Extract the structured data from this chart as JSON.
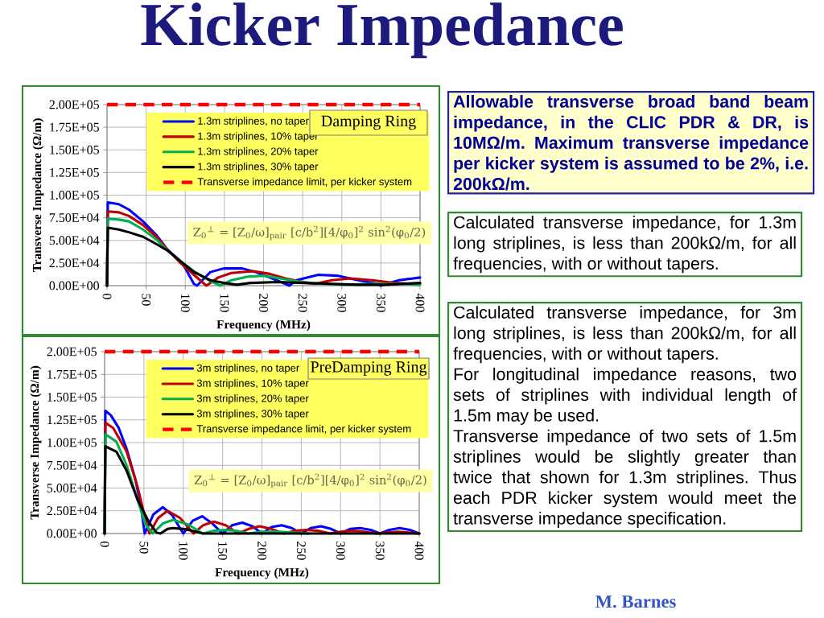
{
  "chart_data": [
    {
      "type": "other",
      "title": "Kicker Impedance",
      "annotations": [
        "Allowable transverse broad band beam impedance, in the CLIC PDR & DR, is 10MΩ/m. Maximum transverse impedance per kicker system is assumed to be 2%, i.e. 200kΩ/m.",
        "Calculated transverse impedance, for 1.3m long striplines, is less than 200kΩ/m, for all frequencies, with or without tapers.",
        "Calculated transverse impedance, for 3m long striplines, is less than 200kΩ/m, for all frequencies, with or without tapers.",
        "For longitudinal impedance reasons, two sets of striplines with individual length of 1.5m may be used.",
        "Transverse impedance of two sets of 1.5m striplines would be slightly greater than twice that shown for 1.3m striplines. Thus each PDR kicker system would meet the transverse impedance specification.",
        "M. Barnes"
      ]
    },
    {
      "type": "line",
      "xlabel": "Frequency (MHz)",
      "ylabel": "Transverse Impedance (Ω/m)",
      "annotations": [
        "Damping Ring",
        "Z$_{0}$$^{⊥}$ = [Z$_{0}$/ω]$_{pair}$ [c/b$^{2}$][4/φ$_{0}$]$^{2}$ sin$^{2}$(φ$_{0}$/2)"
      ],
      "xlim": [
        0,
        400
      ],
      "ylim": [
        0,
        200000
      ],
      "xticks": [
        0,
        50,
        100,
        150,
        200,
        250,
        300,
        350,
        400
      ],
      "yticks": [
        {
          "value": 0,
          "label": "0.00E+00"
        },
        {
          "value": 25000,
          "label": "2.50E+04"
        },
        {
          "value": 50000,
          "label": "5.00E+04"
        },
        {
          "value": 75000,
          "label": "7.50E+04"
        },
        {
          "value": 100000,
          "label": "1.00E+05"
        },
        {
          "value": 125000,
          "label": "1.25E+05"
        },
        {
          "value": 150000,
          "label": "1.50E+05"
        },
        {
          "value": 175000,
          "label": "1.75E+05"
        },
        {
          "value": 200000,
          "label": "2.00E+05"
        }
      ],
      "grid": true,
      "legend": "top right",
      "series": [
        {
          "name": "1.3m striplines, no taper",
          "color": "#0000ff",
          "x": [
            0,
            1,
            15,
            28,
            46,
            63,
            77,
            90,
            97,
            111,
            115,
            132,
            149,
            173,
            190,
            208,
            228,
            233,
            242,
            270,
            294,
            321,
            345,
            350,
            373,
            400
          ],
          "values": [
            0,
            92000,
            90000,
            84000,
            71000,
            56000,
            40000,
            30000,
            24000,
            2000,
            0,
            15000,
            19000,
            19000,
            15000,
            9000,
            2000,
            0,
            6000,
            12000,
            11000,
            6000,
            2000,
            0,
            6000,
            9000
          ]
        },
        {
          "name": "1.3m striplines, 10% taper",
          "color": "#c00000",
          "x": [
            0,
            1,
            15,
            28,
            46,
            63,
            77,
            94,
            111,
            127,
            142,
            159,
            187,
            208,
            228,
            256,
            266,
            287,
            311,
            339,
            366,
            390,
            400
          ],
          "values": [
            0,
            82000,
            81000,
            77000,
            67000,
            54000,
            40000,
            25000,
            12000,
            0,
            9000,
            14000,
            16000,
            13000,
            8000,
            3000,
            2000,
            6000,
            8000,
            6000,
            3000,
            2000,
            2000
          ]
        },
        {
          "name": "1.3m striplines, 20% taper",
          "color": "#00b050",
          "x": [
            0,
            1,
            15,
            28,
            46,
            63,
            77,
            94,
            111,
            132,
            145,
            159,
            180,
            201,
            221,
            249,
            276,
            304,
            339,
            373,
            400
          ],
          "values": [
            0,
            74000,
            73000,
            71000,
            62000,
            51000,
            39000,
            27000,
            16000,
            5000,
            0,
            6000,
            10000,
            11000,
            8000,
            4000,
            2000,
            1000,
            2000,
            2000,
            1000
          ]
        },
        {
          "name": "1.3m striplines, 30% taper",
          "color": "#000000",
          "x": [
            0,
            1,
            15,
            28,
            46,
            63,
            77,
            94,
            111,
            132,
            149,
            166,
            183,
            218,
            252,
            287,
            321,
            356,
            400
          ],
          "values": [
            0,
            64000,
            62000,
            59000,
            54000,
            46000,
            39000,
            27000,
            15000,
            6000,
            3000,
            1000,
            3000,
            4000,
            3000,
            2000,
            1000,
            1000,
            3000
          ]
        }
      ],
      "ref_lines": [
        {
          "axis": "y",
          "value": 200000,
          "label": "Transverse impedance limit, per kicker system",
          "color": "#ff0000",
          "line_style": "dashed"
        }
      ]
    },
    {
      "type": "line",
      "xlabel": "Frequency (MHz)",
      "ylabel": "Transverse Impedance (Ω/m)",
      "annotations": [
        "PreDamping Ring",
        "Z$_{0}$$^{⊥}$ = [Z$_{0}$/ω]$_{pair}$ [c/b$^{2}$][4/φ$_{0}$]$^{2}$ sin$^{2}$(φ$_{0}$/2)"
      ],
      "xlim": [
        0,
        400
      ],
      "ylim": [
        0,
        200000
      ],
      "xticks": [
        0,
        50,
        100,
        150,
        200,
        250,
        300,
        350,
        400
      ],
      "yticks": [
        {
          "value": 0,
          "label": "0.00E+00"
        },
        {
          "value": 25000,
          "label": "2.50E+04"
        },
        {
          "value": 50000,
          "label": "5.00E+04"
        },
        {
          "value": 75000,
          "label": "7.50E+04"
        },
        {
          "value": 100000,
          "label": "1.00E+05"
        },
        {
          "value": 125000,
          "label": "1.25E+05"
        },
        {
          "value": 150000,
          "label": "1.50E+05"
        },
        {
          "value": 175000,
          "label": "1.75E+05"
        },
        {
          "value": 200000,
          "label": "2.00E+05"
        }
      ],
      "grid": true,
      "legend": "top right",
      "series": [
        {
          "name": "3m striplines, no taper",
          "color": "#0000ff",
          "x": [
            0,
            1,
            8,
            18,
            28,
            39,
            46,
            51,
            62,
            74,
            86,
            100,
            112,
            124,
            137,
            150,
            162,
            175,
            188,
            200,
            212,
            225,
            238,
            250,
            262,
            275,
            288,
            300,
            312,
            325,
            338,
            350,
            362,
            375,
            388,
            400
          ],
          "values": [
            0,
            135000,
            130000,
            116000,
            93000,
            60000,
            31000,
            0,
            21000,
            29000,
            20000,
            0,
            14000,
            19000,
            11000,
            0,
            9000,
            12000,
            8000,
            0,
            7000,
            9000,
            6000,
            0,
            6000,
            8000,
            5000,
            0,
            5000,
            6000,
            4000,
            0,
            4000,
            6000,
            4000,
            0
          ]
        },
        {
          "name": "3m striplines, 10% taper",
          "color": "#c00000",
          "x": [
            0,
            1,
            11,
            28,
            42,
            51,
            57,
            68,
            80,
            96,
            113,
            125,
            139,
            154,
            170,
            183,
            197,
            212,
            228,
            242,
            256,
            271,
            287,
            300,
            314,
            330,
            345,
            358,
            373,
            387,
            400
          ],
          "values": [
            0,
            122000,
            116000,
            90000,
            51000,
            19000,
            0,
            17000,
            25000,
            17000,
            0,
            9000,
            13000,
            9000,
            0,
            5000,
            8000,
            5000,
            0,
            3000,
            4000,
            3000,
            0,
            2000,
            3000,
            2000,
            0,
            1000,
            2000,
            1000,
            0
          ]
        },
        {
          "name": "3m striplines, 20% taper",
          "color": "#00b050",
          "x": [
            0,
            1,
            15,
            28,
            42,
            52,
            61,
            74,
            87,
            106,
            125,
            138,
            152,
            167,
            182,
            200,
            220,
            240,
            260
          ],
          "values": [
            0,
            109000,
            101000,
            75000,
            37000,
            10000,
            0,
            11000,
            15000,
            10000,
            0,
            3000,
            4000,
            3000,
            0,
            2000,
            2000,
            1000,
            0
          ]
        },
        {
          "name": "3m striplines, 30% taper",
          "color": "#000000",
          "x": [
            0,
            1,
            15,
            28,
            42,
            56,
            66,
            71,
            80,
            87,
            100,
            111,
            125,
            150,
            200,
            250,
            300,
            350,
            400
          ],
          "values": [
            0,
            96000,
            90000,
            69000,
            37000,
            13000,
            1000,
            0,
            5000,
            6000,
            5000,
            3000,
            0,
            0,
            0,
            0,
            0,
            0,
            0
          ]
        }
      ],
      "ref_lines": [
        {
          "axis": "y",
          "value": 200000,
          "label": "Transverse impedance limit, per kicker system",
          "color": "#ff0000",
          "line_style": "dashed"
        }
      ]
    }
  ]
}
